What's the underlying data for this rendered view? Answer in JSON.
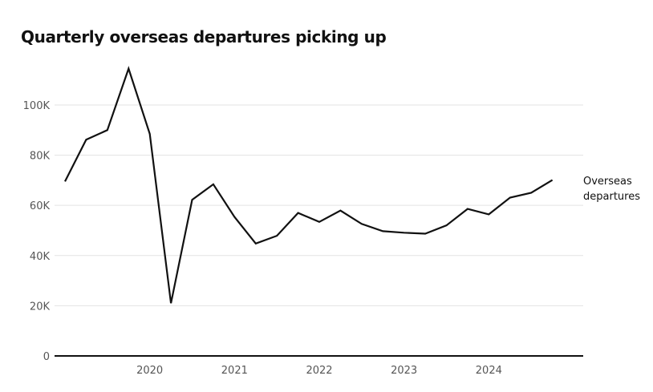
{
  "chart_data": {
    "type": "line",
    "title": "Quarterly overseas departures picking up",
    "xlabel": "",
    "ylabel": "",
    "ylim": [
      0,
      115000
    ],
    "xlim": [
      2019.25,
      2025.25
    ],
    "grid": true,
    "y_ticks": [
      {
        "value": 0,
        "label": "0"
      },
      {
        "value": 20000,
        "label": "20K"
      },
      {
        "value": 40000,
        "label": "40K"
      },
      {
        "value": 60000,
        "label": "60K"
      },
      {
        "value": 80000,
        "label": "80K"
      },
      {
        "value": 100000,
        "label": "100K"
      }
    ],
    "x_ticks": [
      {
        "value": 2020.25,
        "label": "2020"
      },
      {
        "value": 2021.25,
        "label": "2021"
      },
      {
        "value": 2022.25,
        "label": "2022"
      },
      {
        "value": 2023.25,
        "label": "2023"
      },
      {
        "value": 2024.25,
        "label": "2024"
      }
    ],
    "series": [
      {
        "name": "Overseas departures",
        "color": "#111111",
        "points": [
          {
            "x": 2019.25,
            "y": 69500
          },
          {
            "x": 2019.5,
            "y": 86200
          },
          {
            "x": 2019.75,
            "y": 90000
          },
          {
            "x": 2020.0,
            "y": 114500
          },
          {
            "x": 2020.25,
            "y": 88500
          },
          {
            "x": 2020.5,
            "y": 21000
          },
          {
            "x": 2020.75,
            "y": 62200
          },
          {
            "x": 2021.0,
            "y": 68400
          },
          {
            "x": 2021.25,
            "y": 55400
          },
          {
            "x": 2021.5,
            "y": 44800
          },
          {
            "x": 2021.75,
            "y": 47900
          },
          {
            "x": 2022.0,
            "y": 57000
          },
          {
            "x": 2022.25,
            "y": 53400
          },
          {
            "x": 2022.5,
            "y": 57900
          },
          {
            "x": 2022.75,
            "y": 52600
          },
          {
            "x": 2023.0,
            "y": 49700
          },
          {
            "x": 2023.25,
            "y": 49100
          },
          {
            "x": 2023.5,
            "y": 48700
          },
          {
            "x": 2023.75,
            "y": 52000
          },
          {
            "x": 2024.0,
            "y": 58600
          },
          {
            "x": 2024.25,
            "y": 56400
          },
          {
            "x": 2024.5,
            "y": 63100
          },
          {
            "x": 2024.75,
            "y": 65000
          },
          {
            "x": 2025.0,
            "y": 70100
          }
        ]
      }
    ],
    "series_label_lines": [
      "Overseas",
      "departures"
    ]
  }
}
